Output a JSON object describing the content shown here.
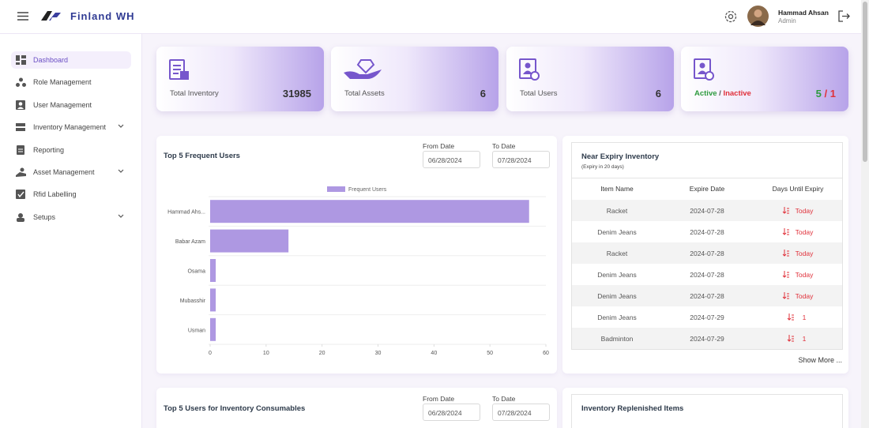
{
  "header": {
    "title": "Finland WH",
    "user_name": "Hammad Ahsan",
    "user_role": "Admin"
  },
  "sidebar": {
    "items": [
      "Dashboard",
      "Role Management",
      "User Management",
      "Inventory Management",
      "Reporting",
      "Asset Management",
      "Rfid Labelling",
      "Setups"
    ]
  },
  "cards": [
    {
      "label": "Total Inventory",
      "value": 31985
    },
    {
      "label": "Total Assets",
      "value": 6
    },
    {
      "label": "Total Users",
      "value": 6
    }
  ],
  "status_card": {
    "active_label": "Active",
    "separator": "/",
    "inactive_label": "Inactive",
    "active": 5,
    "inactive": 1
  },
  "frequent_users": {
    "title": "Top 5 Frequent Users",
    "from_label": "From Date",
    "from": "06/28/2024",
    "to_label": "To Date",
    "to": "07/28/2024"
  },
  "chart_data": {
    "type": "hbar",
    "categories": [
      "Hammad Ahs...",
      "Babar Azam",
      "Osama",
      "Mubasshir",
      "Usman"
    ],
    "series": [
      {
        "name": "Frequent Users",
        "color": "#ae98e2",
        "values": [
          57,
          14,
          1,
          1,
          1
        ]
      }
    ],
    "xlim": [
      0,
      60
    ],
    "xticks": [
      0,
      10,
      20,
      30,
      40,
      50,
      60
    ]
  },
  "expiry": {
    "title": "Near Expiry Inventory",
    "subtitle": "(Expiry in 20 days)",
    "columns": [
      "Item Name",
      "Expire Date",
      "Days Until Expiry"
    ],
    "rows": [
      [
        "Racket",
        "2024-07-28",
        "Today"
      ],
      [
        "Denim Jeans",
        "2024-07-28",
        "Today"
      ],
      [
        "Racket",
        "2024-07-28",
        "Today"
      ],
      [
        "Denim Jeans",
        "2024-07-28",
        "Today"
      ],
      [
        "Denim Jeans",
        "2024-07-28",
        "Today"
      ],
      [
        "Denim Jeans",
        "2024-07-29",
        1
      ],
      [
        "Badminton",
        "2024-07-29",
        1
      ]
    ],
    "show_more": "Show More ..."
  },
  "consumables": {
    "title": "Top 5 Users for Inventory Consumables",
    "from_label": "From Date",
    "from": "06/28/2024",
    "to_label": "To Date",
    "to": "07/28/2024"
  },
  "replenished": {
    "title": "Inventory Replenished Items"
  }
}
